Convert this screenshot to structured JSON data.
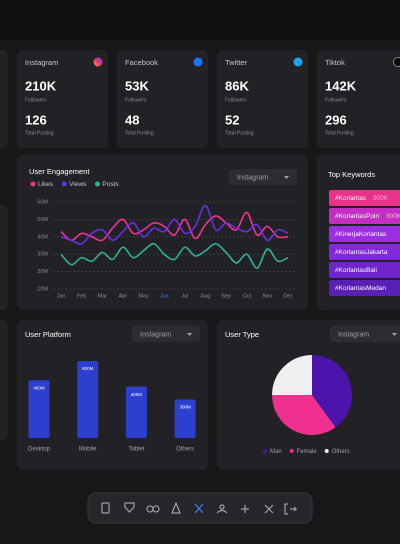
{
  "stat_cards": [
    {
      "name": "Instagram",
      "followers": "210K",
      "followers_label": "Followers",
      "posts": "126",
      "posts_label": "Total Posting"
    },
    {
      "name": "Facebook",
      "followers": "53K",
      "followers_label": "Followers",
      "posts": "48",
      "posts_label": "Total Posting"
    },
    {
      "name": "Twitter",
      "followers": "86K",
      "followers_label": "Followers",
      "posts": "52",
      "posts_label": "Total Posting"
    },
    {
      "name": "Tiktok",
      "followers": "142K",
      "followers_label": "Followers",
      "posts": "296",
      "posts_label": "Total Posting"
    }
  ],
  "keywords": {
    "title": "Top Keywords",
    "items": [
      {
        "tag": "#Korlantas",
        "value": "900K"
      },
      {
        "tag": "#KorlantasPolri",
        "value": "800K"
      },
      {
        "tag": "#KinerjaKorlantas"
      },
      {
        "tag": "#KorlantasJakarta"
      },
      {
        "tag": "#KorlantasBali"
      },
      {
        "tag": "#KorlantasMedan"
      }
    ]
  },
  "chart_data": [
    {
      "type": "line",
      "title": "User Engagement",
      "filter": "Instagram",
      "categories": [
        "Jan",
        null,
        "Feb",
        null,
        "Mar",
        null,
        "Apr",
        null,
        "May",
        null,
        "Jun",
        null,
        "Jul",
        null,
        "Aug",
        null,
        "Sep",
        null,
        "Oct",
        null,
        "Nov",
        null,
        "Dec"
      ],
      "selected_category": "Jun",
      "series": [
        {
          "name": "Likes",
          "color": "#f0338f",
          "values": [
            43,
            38,
            42,
            40,
            38,
            45,
            50,
            42,
            44,
            48,
            46,
            41,
            50,
            39,
            47,
            52,
            48,
            44,
            54,
            41,
            46,
            40,
            40
          ]
        },
        {
          "name": "Views",
          "color": "#6a2ee6",
          "values": [
            40,
            38,
            36,
            42,
            44,
            38,
            43,
            48,
            40,
            45,
            43,
            50,
            42,
            46,
            58,
            44,
            48,
            45,
            43,
            47,
            38,
            44,
            42
          ]
        },
        {
          "name": "Posts",
          "color": "#2bb39a",
          "values": [
            30,
            24,
            28,
            26,
            31,
            27,
            34,
            28,
            32,
            36,
            30,
            27,
            34,
            29,
            32,
            36,
            31,
            25,
            30,
            22,
            33,
            26,
            28
          ]
        }
      ],
      "ylim": [
        10,
        60
      ],
      "yticks": [
        {
          "value": 10,
          "label": "10M"
        },
        {
          "value": 20,
          "label": "20M"
        },
        {
          "value": 30,
          "label": "30M"
        },
        {
          "value": 40,
          "label": "40M"
        },
        {
          "value": 50,
          "label": "50M"
        },
        {
          "value": 60,
          "label": "60M"
        }
      ],
      "grid": true
    },
    {
      "type": "bar",
      "title": "User Platform",
      "filter": "Instagram",
      "categories": [
        "Desktop",
        "Mobile",
        "Tablet",
        "Others"
      ],
      "values": [
        450,
        600,
        400,
        300
      ],
      "value_labels": [
        "450M",
        "600M",
        "400M",
        "300M"
      ],
      "color": "#2d3fcf"
    },
    {
      "type": "pie",
      "title": "User Type",
      "filter": "Instagram",
      "categories": [
        "Man",
        "Female",
        "Others"
      ],
      "values": [
        40,
        35,
        25
      ],
      "colors": [
        "#4a14ad",
        "#f0308f",
        "#efeff1"
      ]
    }
  ]
}
